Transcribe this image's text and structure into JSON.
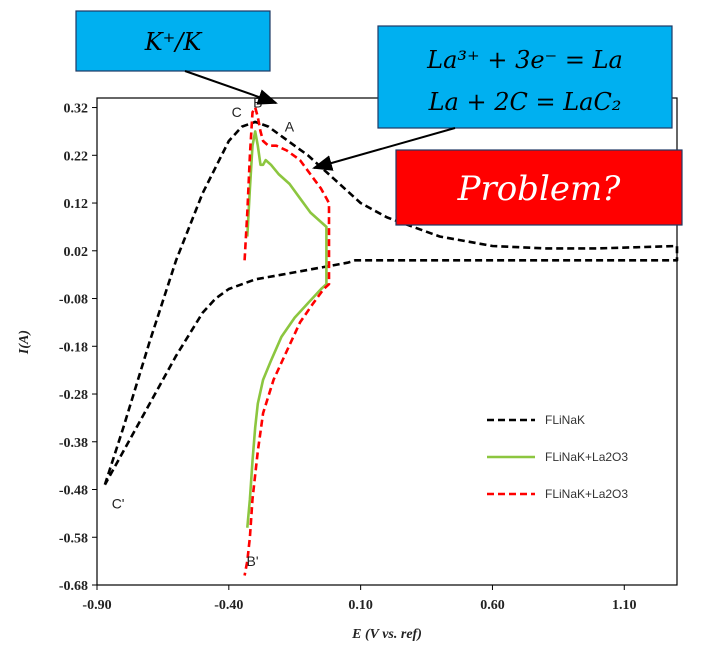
{
  "chart_data": {
    "type": "line",
    "title": "",
    "xlabel": "E (V vs. ref)",
    "ylabel": "I(A)",
    "xlim": [
      -0.9,
      1.3
    ],
    "ylim": [
      -0.68,
      0.34
    ],
    "x_ticks": [
      "-0.90",
      "-0.40",
      "0.10",
      "0.60",
      "1.10"
    ],
    "x_tick_values": [
      -0.9,
      -0.4,
      0.1,
      0.6,
      1.1
    ],
    "y_ticks": [
      "0.32",
      "0.22",
      "0.12",
      "0.02",
      "-0.08",
      "-0.18",
      "-0.28",
      "-0.38",
      "-0.48",
      "-0.58",
      "-0.68"
    ],
    "y_tick_values": [
      0.32,
      0.22,
      0.12,
      0.02,
      -0.08,
      -0.18,
      -0.28,
      -0.38,
      -0.48,
      -0.58,
      -0.68
    ],
    "grid": false,
    "legend_position": "bottom-right",
    "series": [
      {
        "name": "FLiNaK",
        "color": "#000000",
        "style": "dashed",
        "x": [
          -0.87,
          -0.8,
          -0.7,
          -0.6,
          -0.5,
          -0.4,
          -0.35,
          -0.3,
          -0.25,
          -0.2,
          -0.1,
          0.0,
          0.1,
          0.2,
          0.4,
          0.6,
          0.8,
          1.0,
          1.3,
          1.3,
          1.0,
          0.7,
          0.4,
          0.08,
          0.05,
          0.0,
          -0.1,
          -0.2,
          -0.3,
          -0.4,
          -0.45,
          -0.5,
          -0.6,
          -0.7,
          -0.87
        ],
        "y": [
          -0.47,
          -0.35,
          -0.17,
          0.0,
          0.14,
          0.25,
          0.28,
          0.29,
          0.28,
          0.26,
          0.22,
          0.17,
          0.12,
          0.09,
          0.05,
          0.03,
          0.025,
          0.025,
          0.03,
          0.0,
          0.0,
          0.0,
          0.0,
          0.0,
          -0.005,
          -0.01,
          -0.02,
          -0.03,
          -0.04,
          -0.06,
          -0.08,
          -0.11,
          -0.2,
          -0.3,
          -0.47
        ]
      },
      {
        "name": "FLiNaK+La2O3",
        "color": "#8cc63f",
        "style": "solid",
        "x": [
          -0.33,
          -0.32,
          -0.31,
          -0.3,
          -0.29,
          -0.28,
          -0.27,
          -0.26,
          -0.24,
          -0.21,
          -0.17,
          -0.13,
          -0.09,
          -0.05,
          -0.03,
          -0.03,
          -0.05,
          -0.1,
          -0.15,
          -0.2,
          -0.24,
          -0.27,
          -0.29,
          -0.3,
          -0.31,
          -0.32,
          -0.33
        ],
        "y": [
          0.05,
          0.15,
          0.24,
          0.27,
          0.24,
          0.2,
          0.2,
          0.21,
          0.2,
          0.18,
          0.16,
          0.13,
          0.1,
          0.08,
          0.07,
          -0.05,
          -0.06,
          -0.09,
          -0.12,
          -0.16,
          -0.21,
          -0.25,
          -0.3,
          -0.35,
          -0.42,
          -0.5,
          -0.56
        ]
      },
      {
        "name": "FLiNaK+La2O3",
        "color": "#ff0000",
        "style": "dashed",
        "x": [
          -0.34,
          -0.33,
          -0.32,
          -0.31,
          -0.3,
          -0.29,
          -0.28,
          -0.27,
          -0.25,
          -0.22,
          -0.18,
          -0.13,
          -0.09,
          -0.05,
          -0.03,
          -0.02,
          -0.02,
          -0.04,
          -0.08,
          -0.13,
          -0.18,
          -0.23,
          -0.27,
          -0.29,
          -0.31,
          -0.32,
          -0.33,
          -0.34
        ],
        "y": [
          0.0,
          0.1,
          0.22,
          0.31,
          0.32,
          0.3,
          0.27,
          0.25,
          0.24,
          0.24,
          0.23,
          0.21,
          0.18,
          0.15,
          0.13,
          0.12,
          -0.05,
          -0.06,
          -0.09,
          -0.13,
          -0.19,
          -0.25,
          -0.32,
          -0.4,
          -0.5,
          -0.58,
          -0.63,
          -0.66
        ]
      }
    ],
    "point_labels": [
      {
        "text": "C",
        "x": -0.37,
        "y": 0.3
      },
      {
        "text": "B",
        "x": -0.29,
        "y": 0.32
      },
      {
        "text": "A",
        "x": -0.17,
        "y": 0.27
      },
      {
        "text": "C'",
        "x": -0.82,
        "y": -0.52
      },
      {
        "text": "B'",
        "x": -0.31,
        "y": -0.64
      }
    ]
  },
  "annotations": {
    "k_box": {
      "text": "K⁺/K",
      "fill": "#00b0f0"
    },
    "la_box": {
      "line1": "La³⁺ + 3e⁻ = La",
      "line2": "La + 2C = LaC₂",
      "fill": "#00b0f0"
    },
    "problem_box": {
      "text": "Problem?",
      "fill": "#ff0000"
    }
  }
}
